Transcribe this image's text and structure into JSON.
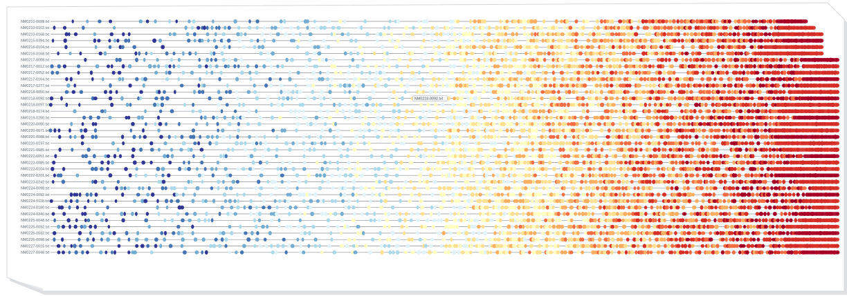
{
  "chart_data": {
    "type": "scatter",
    "rows": [
      "NM0210-0099.txt",
      "NM0210-0102.txt",
      "NM0210-0168.txt",
      "NM0215-0394.txt",
      "NM0216-0104.txt",
      "NM0216-0168.txt",
      "NM0217-0008.txt",
      "NM0217-0012.txt",
      "NM0217-0052.txt",
      "NM0217-0164.txt",
      "NM0217-0277.txt",
      "NM0218-0050.txt",
      "NM0218-0092.txt",
      "NM0218-0097.txt",
      "NM0218-0174.txt",
      "NM0219-0250.txt",
      "NM0220-0050.txt",
      "NM0220-0071.txt",
      "NM0220-0088.txt",
      "NM0220-0197.txt",
      "NM0221-0085.txt",
      "NM0222-0051.txt",
      "NM0222-0085.txt",
      "NM0222-0104.txt",
      "NM0222-0201.txt",
      "NM0223-0242.txt",
      "NM0224-0098.txt",
      "NM0224-0092.txt",
      "NM0224-0118.txt",
      "NM0224-0180.txt",
      "NM0224-0240.txt",
      "NM0225-0048.txt",
      "NM0225-0092.txt",
      "NM0226-0032.txt",
      "NM0226-0098.txt",
      "NM0227-0015.txt",
      "NM0227-0048.txt"
    ],
    "row_lengths": [
      0.96,
      0.97,
      0.98,
      0.98,
      0.98,
      0.98,
      1.0,
      1.0,
      1.0,
      1.0,
      1.0,
      1.0,
      1.0,
      1.0,
      1.0,
      1.0,
      1.0,
      1.0,
      1.0,
      1.0,
      1.0,
      1.0,
      1.0,
      1.0,
      1.0,
      1.0,
      1.0,
      1.0,
      1.0,
      1.0,
      1.0,
      1.0,
      1.0,
      1.0,
      1.0,
      1.0,
      1.0
    ],
    "color_scale": [
      "#313695",
      "#4575b4",
      "#74add1",
      "#abd9e9",
      "#e0f3f8",
      "#ffffbf",
      "#fee090",
      "#fdae61",
      "#f46d43",
      "#d73027",
      "#a50026"
    ],
    "line_color": "#8a8f96",
    "grid": false,
    "legend": "none",
    "tooltip": {
      "text": "NM0218-0092.txt",
      "row": 12,
      "at": 0.46
    }
  }
}
